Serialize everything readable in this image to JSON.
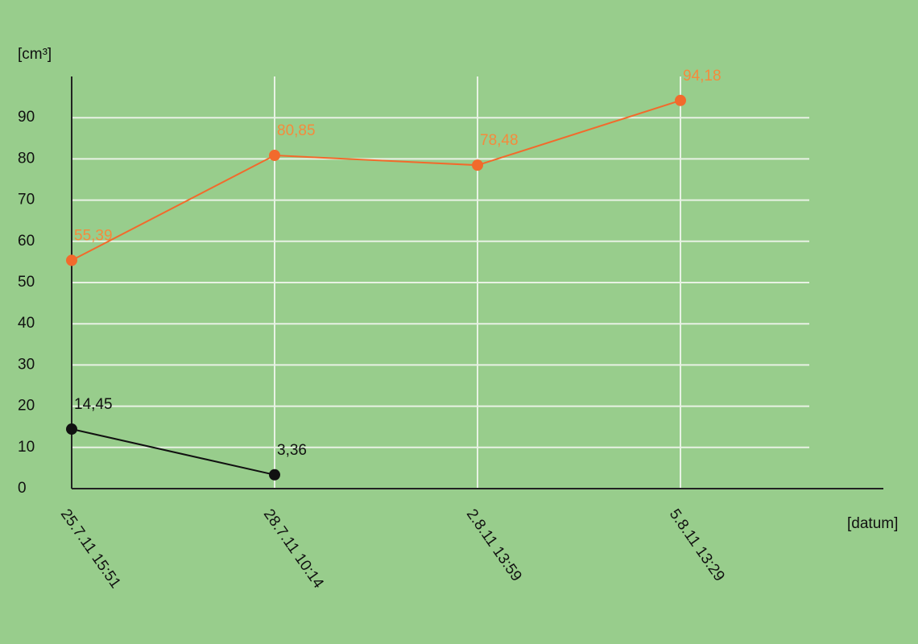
{
  "chart_data": {
    "type": "line",
    "y_label": "[cm³]",
    "x_label": "[datum]",
    "categories": [
      "25.7.11 15:51",
      "28.7.11 10:14",
      "2.8.11 13:59",
      "5.8.11 13:29"
    ],
    "series": [
      {
        "color": "#f26a2c",
        "values": [
          55.39,
          80.85,
          78.48,
          94.18
        ],
        "value_labels": [
          "55,39",
          "80,85",
          "78,48",
          "94,18"
        ]
      },
      {
        "color": "#111111",
        "values": [
          14.45,
          3.36,
          null,
          null
        ],
        "value_labels": [
          "14,45",
          "3,36",
          null,
          null
        ]
      }
    ],
    "ylim": [
      0,
      100
    ],
    "yticks": [
      0,
      10,
      20,
      30,
      40,
      50,
      60,
      70,
      80,
      90
    ],
    "grid": true
  }
}
